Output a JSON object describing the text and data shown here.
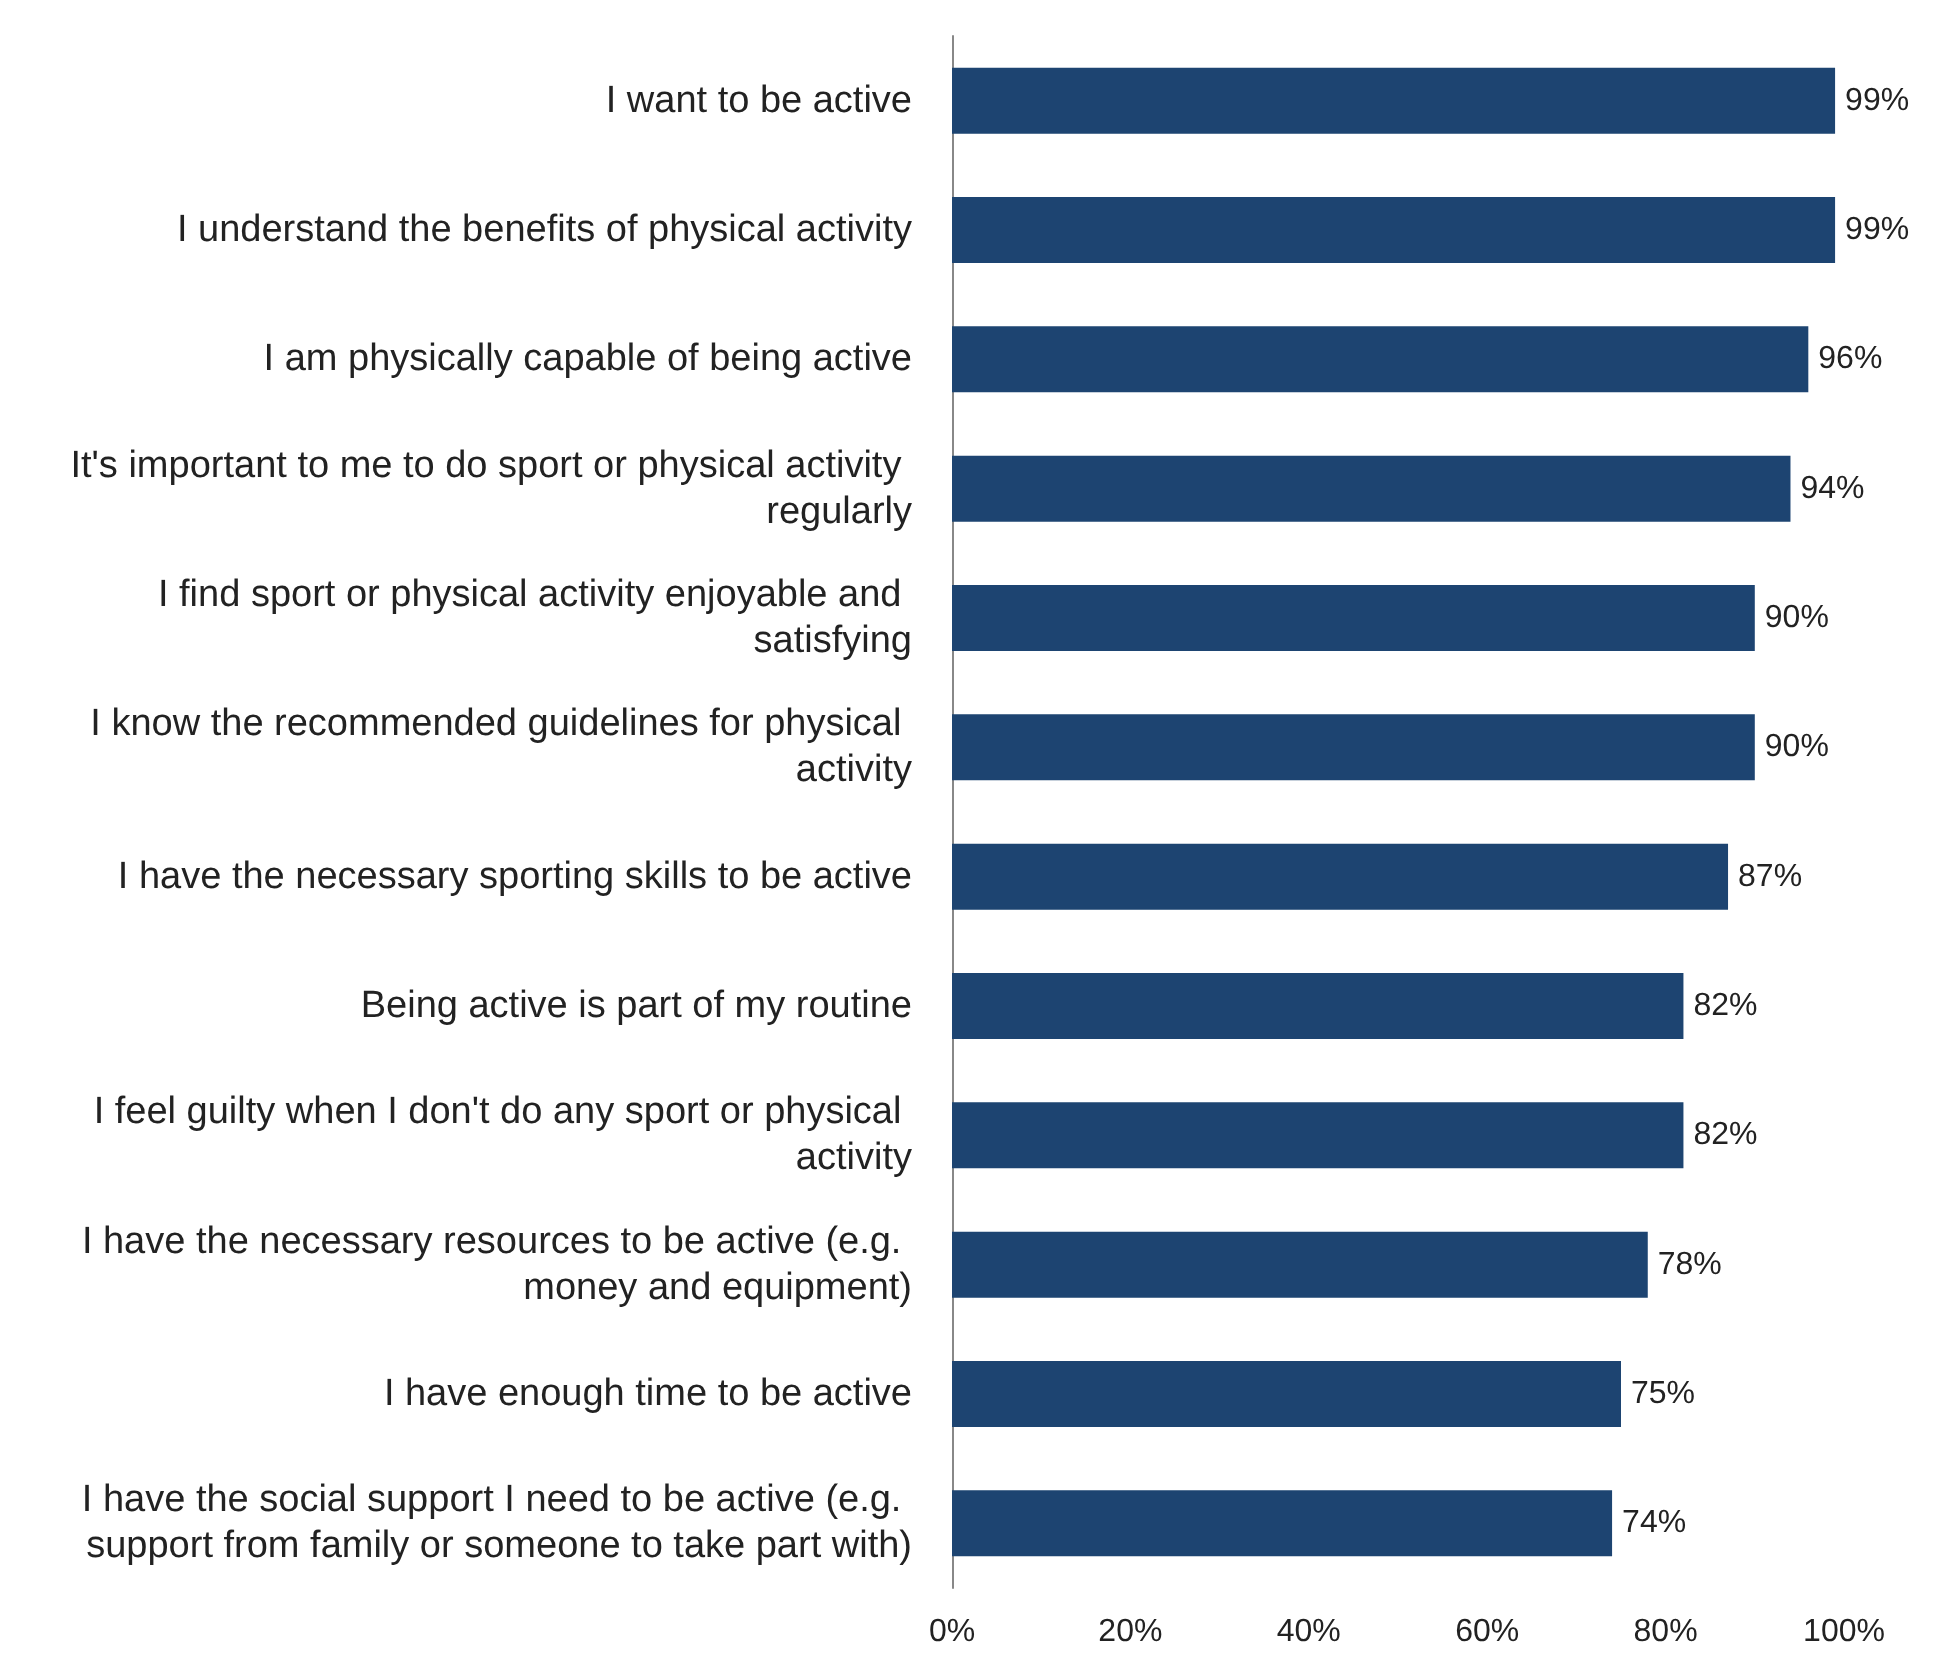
{
  "chart_data": {
    "type": "bar",
    "orientation": "horizontal",
    "categories": [
      "I want to be active",
      "I understand the benefits of physical activity",
      "I am physically capable of being active",
      "It's important to me to do sport or physical activity regularly",
      "I find sport or physical activity enjoyable and satisfying",
      "I know the recommended guidelines for physical activity",
      "I have the necessary sporting skills to be active",
      "Being active is part of my routine",
      "I feel guilty when I don't do any sport or physical activity",
      "I have the necessary resources to be active (e.g. money and equipment)",
      "I have enough time to be active",
      "I have the social support I need to be active (e.g. support from family or someone to take part with)"
    ],
    "values": [
      99,
      99,
      96,
      94,
      90,
      90,
      87,
      82,
      82,
      78,
      75,
      74
    ],
    "value_labels": [
      "99%",
      "99%",
      "96%",
      "94%",
      "90%",
      "90%",
      "87%",
      "82%",
      "82%",
      "78%",
      "75%",
      "74%"
    ],
    "color": "#1d4471",
    "xlim": [
      0,
      100
    ],
    "xticks": [
      {
        "value": 0,
        "label": "0%"
      },
      {
        "value": 20,
        "label": "20%"
      },
      {
        "value": 40,
        "label": "40%"
      },
      {
        "value": 60,
        "label": "60%"
      },
      {
        "value": 80,
        "label": "80%"
      },
      {
        "value": 100,
        "label": "100%"
      }
    ],
    "grid": false
  }
}
